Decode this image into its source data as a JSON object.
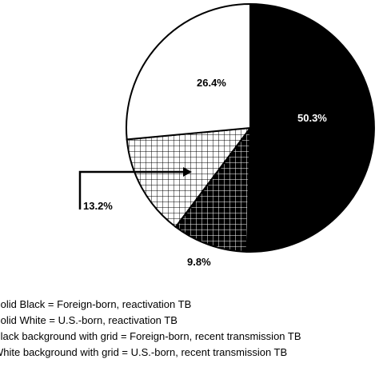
{
  "chart_data": {
    "type": "pie",
    "slices": [
      {
        "label": "50.3%",
        "value": 50.3,
        "fill": "solid-black",
        "legend_index": 0
      },
      {
        "label": "9.8%",
        "value": 9.8,
        "fill": "black-grid",
        "legend_index": 2
      },
      {
        "label": "13.2%",
        "value": 13.2,
        "fill": "white-grid",
        "legend_index": 3
      },
      {
        "label": "26.4%",
        "value": 26.4,
        "fill": "solid-white",
        "legend_index": 1
      }
    ],
    "start_angle_deg": 0,
    "direction": "clockwise",
    "legend": [
      "Solid Black = Foreign-born, reactivation TB",
      "Solid White = U.S.-born, reactivation TB",
      "Black background with grid = Foreign-born, recent transmission TB",
      "White background with grid = U.S.-born, recent transmission TB"
    ],
    "legend_placement": "bottom-left",
    "colors": {
      "black": "#000000",
      "white": "#ffffff"
    }
  }
}
